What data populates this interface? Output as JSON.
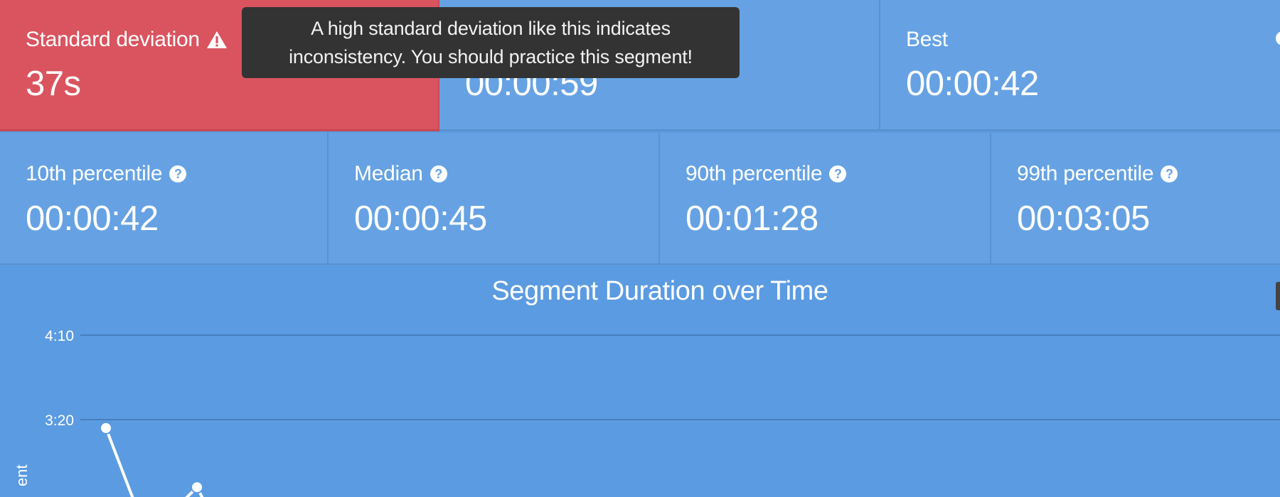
{
  "stats_top": [
    {
      "label": "Standard deviation",
      "value": "37s",
      "icon": "warning-icon",
      "variant": "danger"
    },
    {
      "label": "",
      "value": "00:00:59",
      "icon": "",
      "variant": "normal"
    },
    {
      "label": "Best",
      "value": "00:00:42",
      "icon": "",
      "variant": "normal"
    }
  ],
  "tooltip": {
    "line1": "A high standard deviation like this indicates",
    "line2": "inconsistency. You should practice this segment!"
  },
  "stats_bottom": [
    {
      "label": "10th percentile",
      "value": "00:00:42",
      "icon": "question-icon"
    },
    {
      "label": "Median",
      "value": "00:00:45",
      "icon": "question-icon"
    },
    {
      "label": "90th percentile",
      "value": "00:01:28",
      "icon": "question-icon"
    },
    {
      "label": "99th percentile",
      "value": "00:03:05",
      "icon": "question-icon"
    }
  ],
  "colors": {
    "background": "#5b9be1",
    "tile": "#66a2e3",
    "danger": "#d9545f",
    "tooltip": "#333333"
  },
  "chart_data": {
    "type": "line",
    "title": "Segment Duration over Time",
    "ylabel": "ent",
    "y_ticks": [
      "4:10",
      "3:20"
    ],
    "y_tick_seconds": [
      250,
      200
    ],
    "points": [
      {
        "attempt": 1,
        "seconds": 195
      },
      {
        "attempt": 4,
        "seconds": 160
      }
    ],
    "grid": true
  }
}
